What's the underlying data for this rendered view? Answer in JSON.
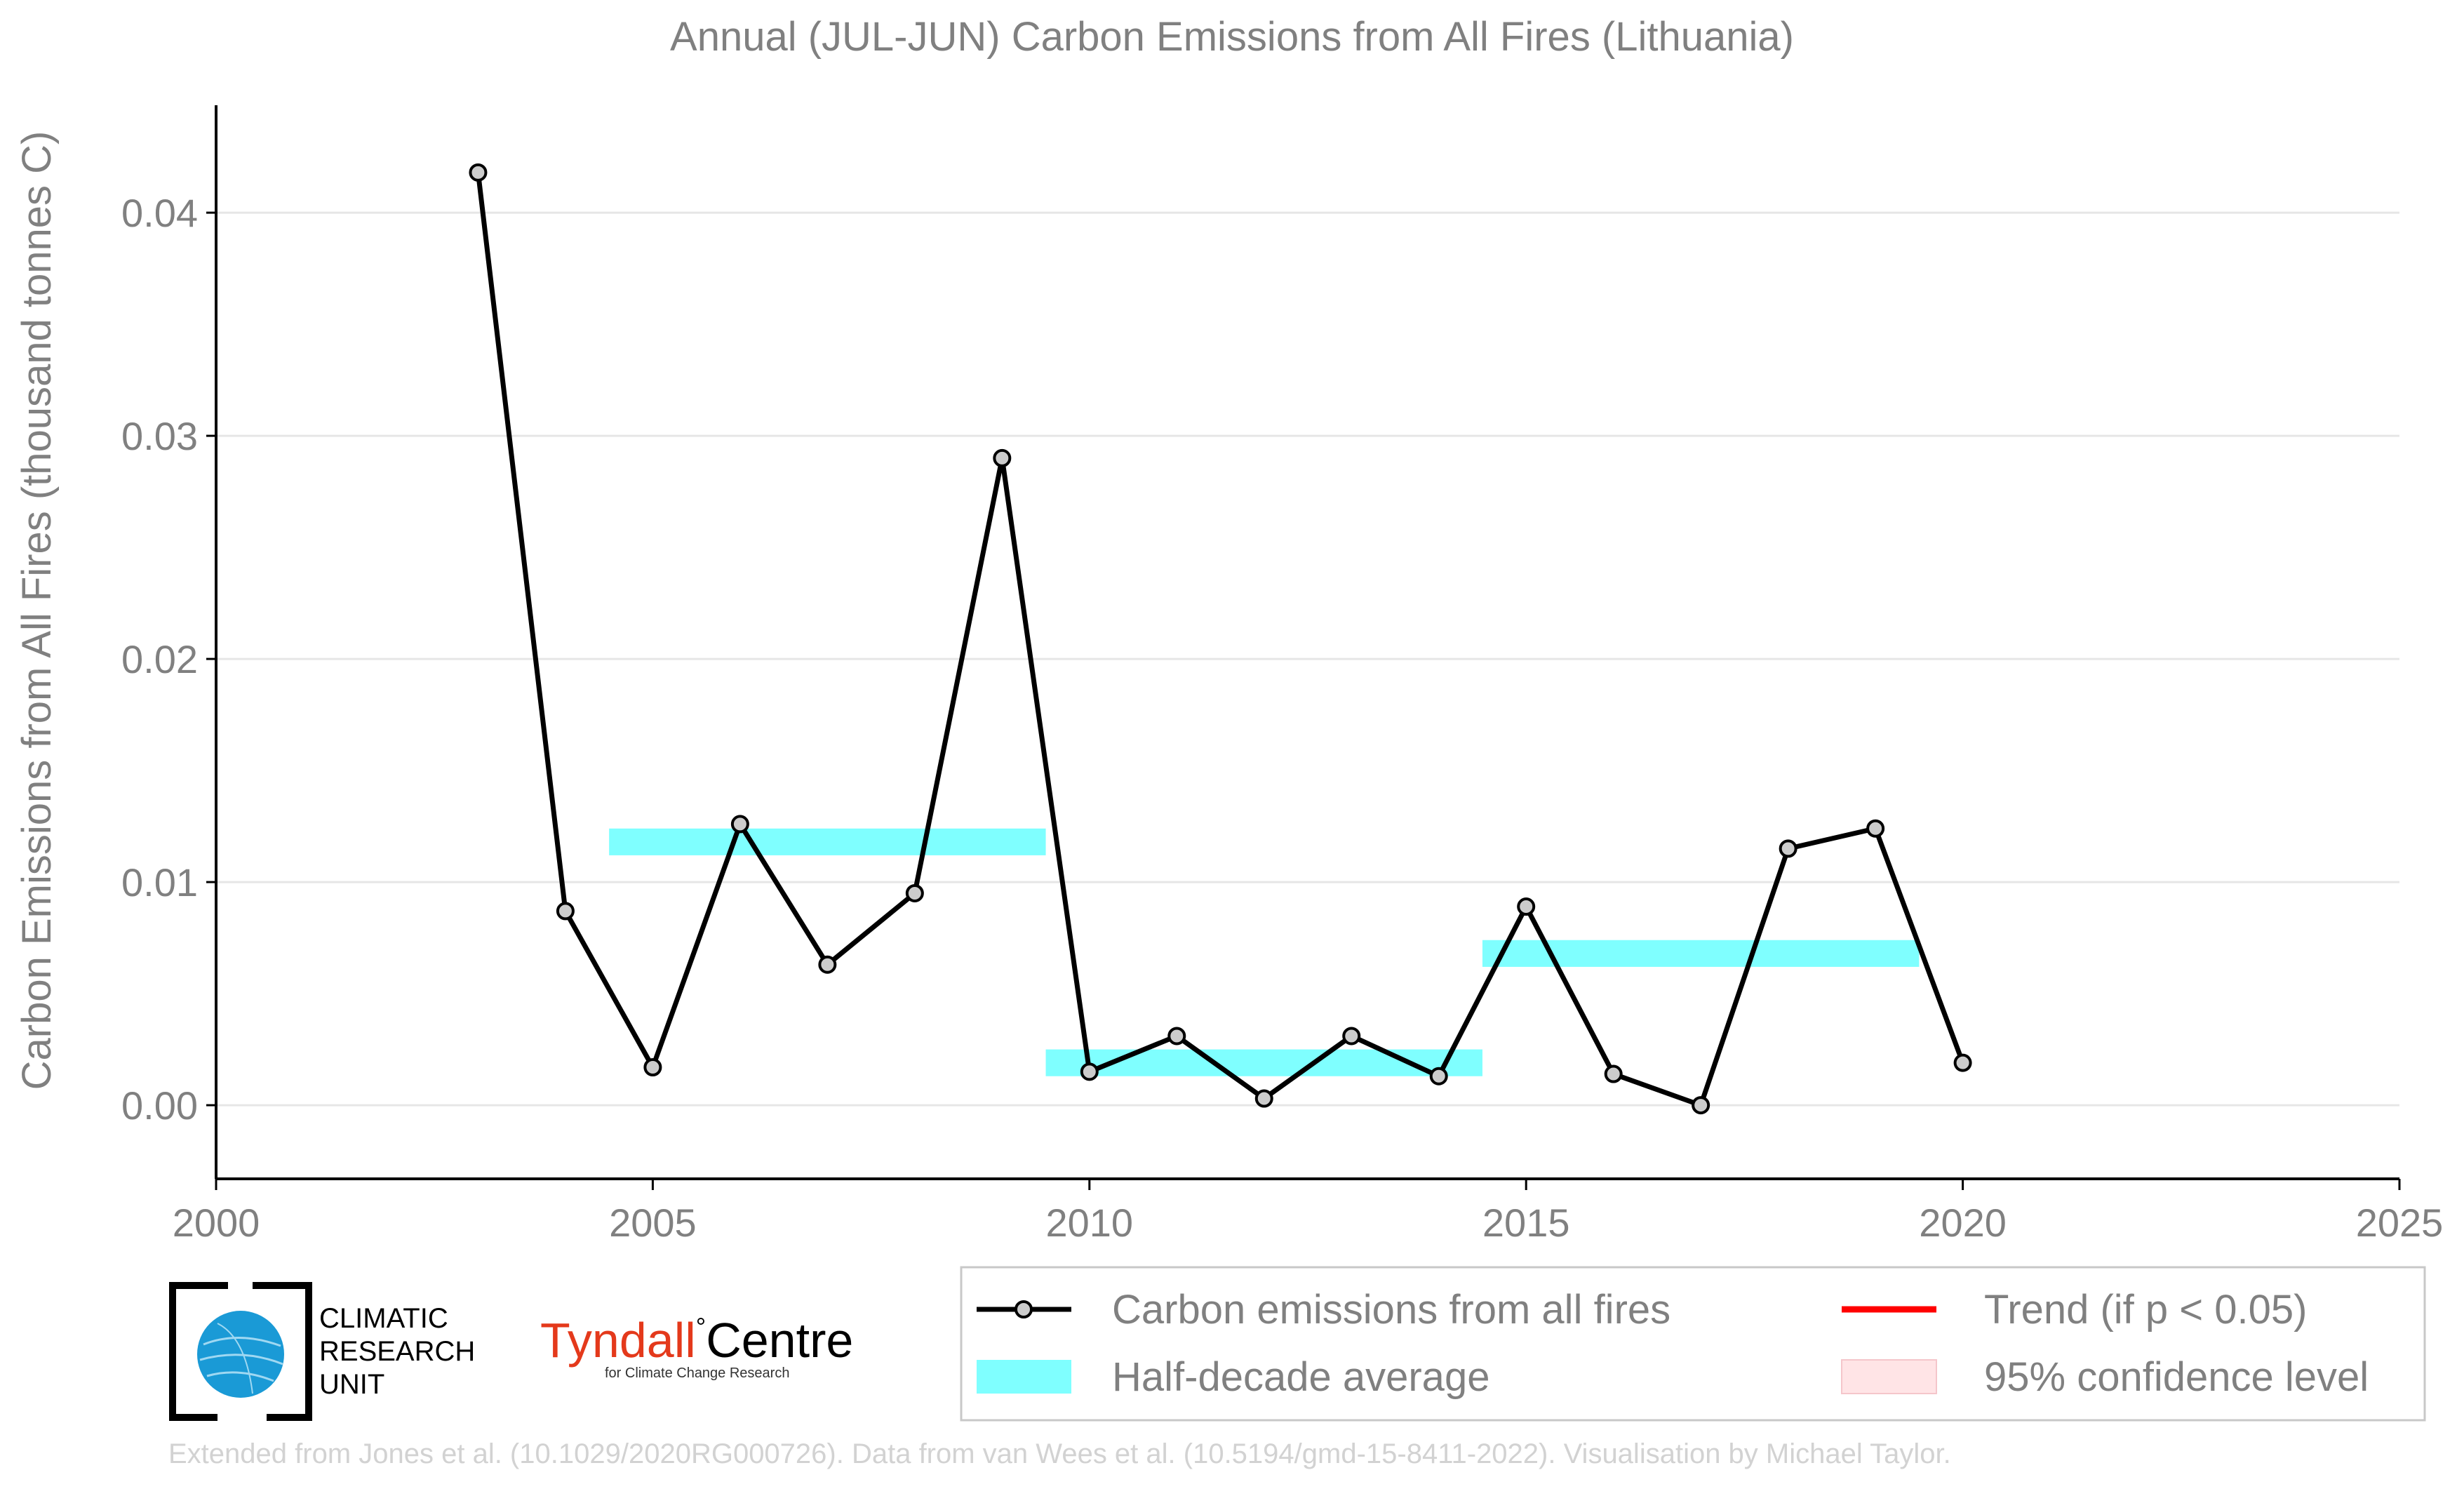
{
  "chart_data": {
    "type": "line",
    "title": "Annual (JUL-JUN) Carbon Emissions from All Fires (Lithuania)",
    "xlabel": "",
    "ylabel": "Carbon Emissions from All Fires (thousand tonnes C)",
    "xlim": [
      2000,
      2025
    ],
    "ylim": [
      -0.0033,
      0.0445
    ],
    "x_ticks": [
      2000,
      2005,
      2010,
      2015,
      2020,
      2025
    ],
    "y_ticks": [
      0.0,
      0.01,
      0.02,
      0.03,
      0.04
    ],
    "y_tick_labels": [
      "0.00",
      "0.01",
      "0.02",
      "0.03",
      "0.04"
    ],
    "grid": "horizontal",
    "series": [
      {
        "name": "Carbon emissions from all fires",
        "color": "#000000",
        "marker_fill": "#cccccc",
        "x": [
          2003,
          2004,
          2005,
          2006,
          2007,
          2008,
          2009,
          2010,
          2011,
          2012,
          2013,
          2014,
          2015,
          2016,
          2017,
          2018,
          2019,
          2020
        ],
        "y": [
          0.0418,
          0.0087,
          0.0017,
          0.0126,
          0.0063,
          0.0095,
          0.029,
          0.0015,
          0.0031,
          0.0003,
          0.0031,
          0.0013,
          0.0089,
          0.0014,
          0.0,
          0.0115,
          0.0124,
          0.0019
        ]
      }
    ],
    "half_decade_average": {
      "name": "Half-decade average",
      "color": "#7fffff",
      "segments": [
        {
          "x_start": 2004.5,
          "x_end": 2009.5,
          "value": 0.0118
        },
        {
          "x_start": 2009.5,
          "x_end": 2014.5,
          "value": 0.0019
        },
        {
          "x_start": 2014.5,
          "x_end": 2019.5,
          "value": 0.0068
        }
      ],
      "band_halfwidth": 0.0006
    },
    "legend": {
      "placement": "bottom-right",
      "entries": [
        {
          "label": "Carbon emissions from all fires",
          "style": "line-marker",
          "color": "#000000"
        },
        {
          "label": "Trend (if p < 0.05)",
          "style": "line",
          "color": "#ff0000"
        },
        {
          "label": "Half-decade average",
          "style": "patch",
          "color": "#7fffff"
        },
        {
          "label": "95% confidence level",
          "style": "patch",
          "color": "#ffe4e6"
        }
      ]
    },
    "text_color": "#808080",
    "grid_color": "#e6e6e6"
  },
  "logos": {
    "cru": {
      "lines": [
        "CLIMATIC",
        "RESEARCH",
        "UNIT"
      ],
      "icon": "globe-icon",
      "globe_color": "#1a9ad6"
    },
    "tyndall": {
      "main": "Tyndall",
      "degree": "°",
      "centre": "Centre",
      "sub": "for Climate Change Research"
    }
  },
  "footer": {
    "text": "Extended from Jones et al. (10.1029/2020RG000726). Data from van Wees et al. (10.5194/gmd-15-8411-2022). Visualisation by Michael Taylor."
  }
}
